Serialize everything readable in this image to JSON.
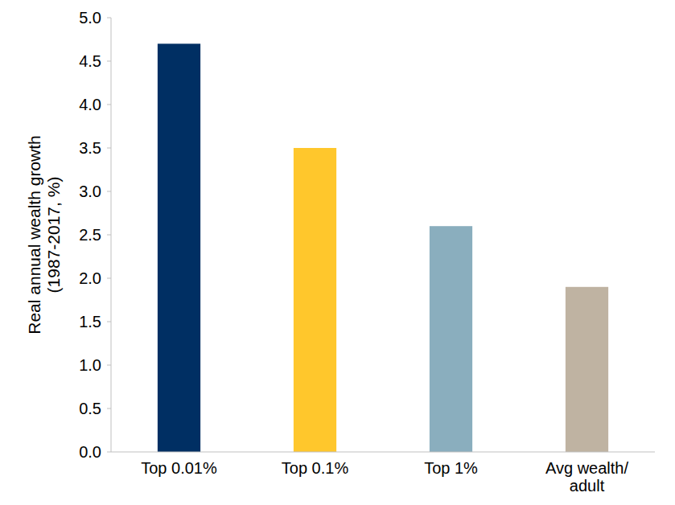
{
  "chart_data": {
    "type": "bar",
    "y_label": [
      "Real annual wealth growth",
      "(1987-2017, %)"
    ],
    "categories": [
      "Top 0.01%",
      "Top 0.1%",
      "Top 1%",
      "Avg wealth/ adult"
    ],
    "values": [
      4.7,
      3.5,
      2.6,
      1.9
    ],
    "colors": [
      "#002f63",
      "#ffc72c",
      "#8aaebe",
      "#bfb3a2"
    ],
    "ylim": [
      0,
      5
    ],
    "yticks": [
      {
        "value": 0,
        "label": "0.0"
      },
      0.5,
      {
        "value": 1,
        "label": "1.0"
      },
      1.5,
      {
        "value": 2,
        "label": "2.0"
      },
      2.5,
      {
        "value": 3,
        "label": "3.0"
      },
      3.5,
      {
        "value": 4,
        "label": "4.0"
      },
      4.5,
      {
        "value": 5,
        "label": "5.0"
      }
    ],
    "grid": false
  }
}
